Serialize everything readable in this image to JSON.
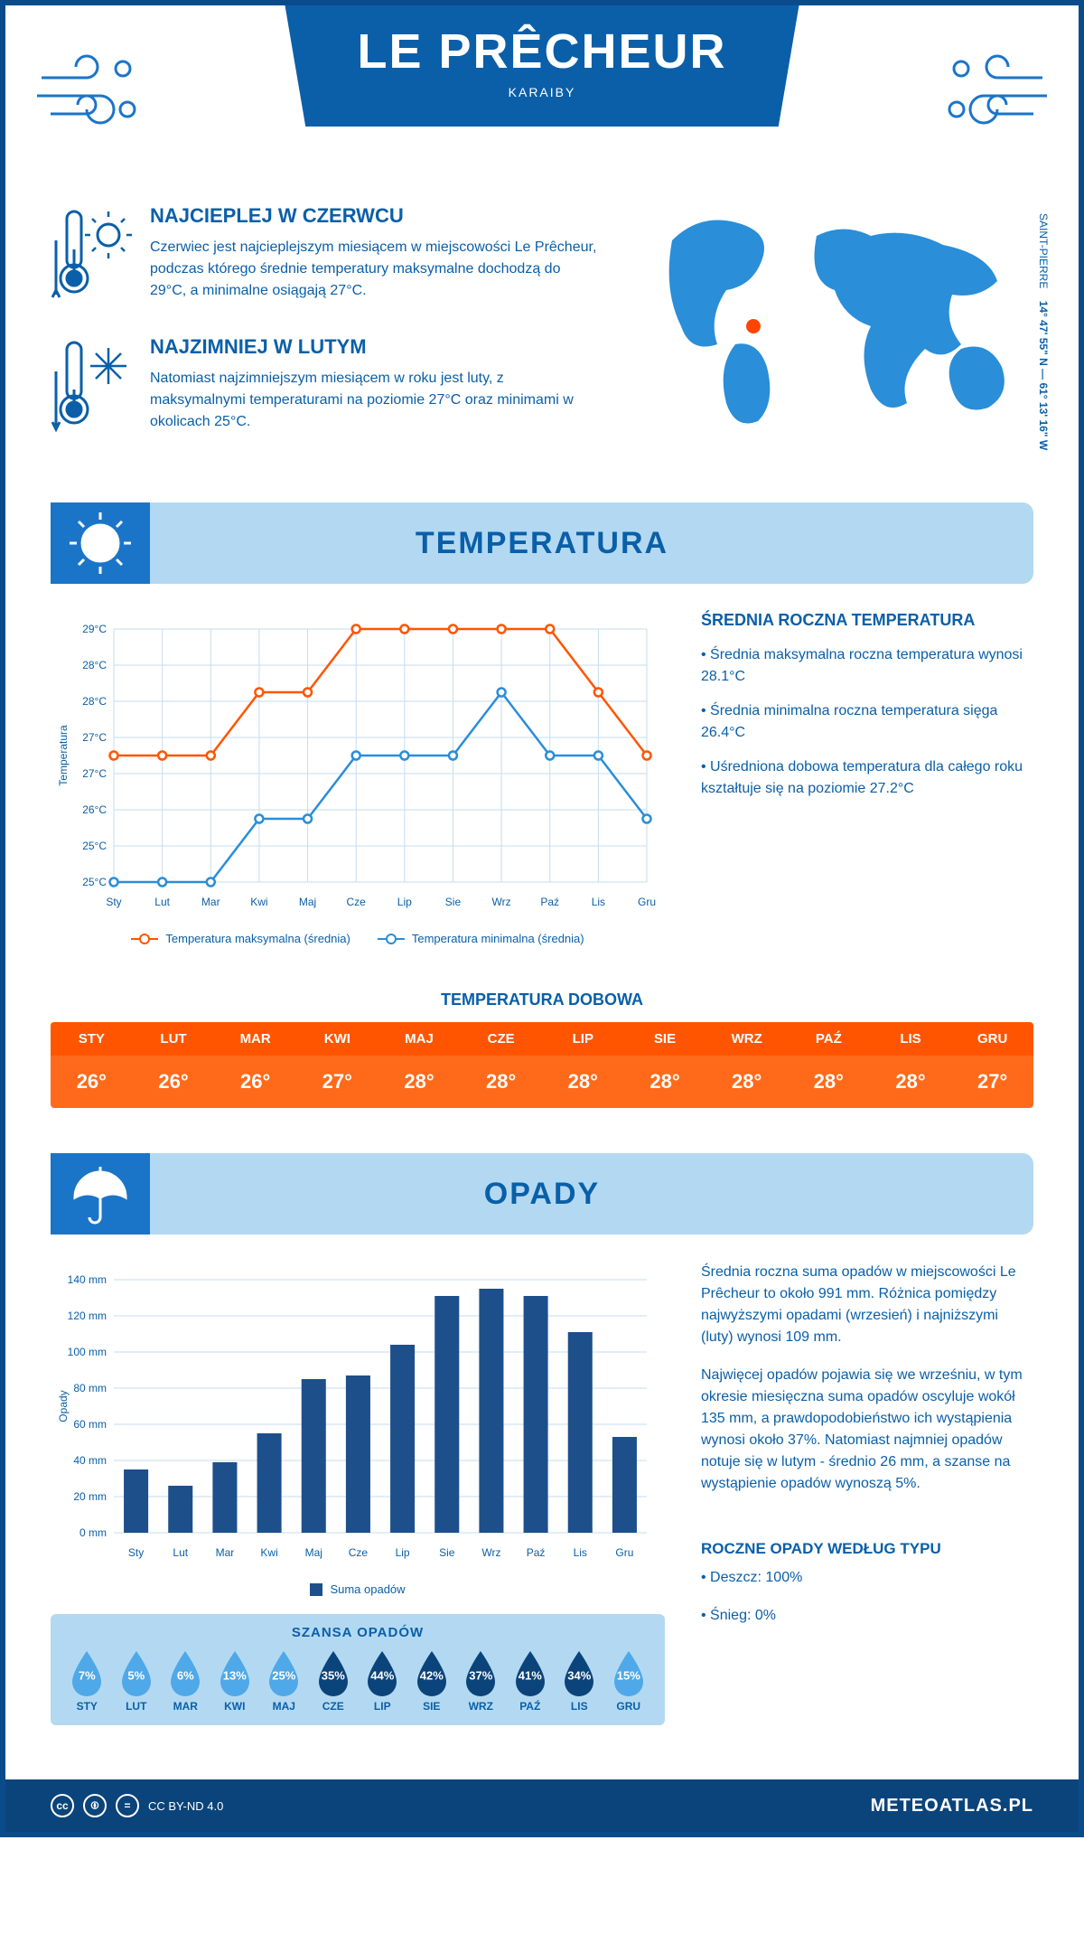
{
  "header": {
    "title": "LE PRÊCHEUR",
    "subtitle": "KARAIBY"
  },
  "coords": {
    "region": "SAINT-PIERRE",
    "lat": "14° 47' 55\" N",
    "lon": "61° 13' 16\" W"
  },
  "intro": {
    "warm": {
      "title": "NAJCIEPLEJ W CZERWCU",
      "text": "Czerwiec jest najcieplejszym miesiącem w miejscowości Le Prêcheur, podczas którego średnie temperatury maksymalne dochodzą do 29°C, a minimalne osiągają 27°C."
    },
    "cold": {
      "title": "NAJZIMNIEJ W LUTYM",
      "text": "Natomiast najzimniejszym miesiącem w roku jest luty, z maksymalnymi temperaturami na poziomie 27°C oraz minimami w okolicach 25°C."
    }
  },
  "sections": {
    "temperature": "TEMPERATURA",
    "precip": "OPADY"
  },
  "temp_chart": {
    "months": [
      "Sty",
      "Lut",
      "Mar",
      "Kwi",
      "Maj",
      "Cze",
      "Lip",
      "Sie",
      "Wrz",
      "Paź",
      "Lis",
      "Gru"
    ],
    "ylabel": "Temperatura",
    "ylim": [
      25,
      29
    ],
    "yticks": [
      "25°C",
      "25°C",
      "26°C",
      "27°C",
      "27°C",
      "28°C",
      "28°C",
      "29°C"
    ],
    "max_series": [
      27,
      27,
      27,
      28,
      28,
      29,
      29,
      29,
      29,
      29,
      28,
      27
    ],
    "min_series": [
      25,
      25,
      25,
      26,
      26,
      27,
      27,
      27,
      28,
      27,
      27,
      26
    ],
    "max_color": "#ff5500",
    "min_color": "#2a8ed8",
    "grid_color": "#c6ddf0",
    "legend_max": "Temperatura maksymalna (średnia)",
    "legend_min": "Temperatura minimalna (średnia)"
  },
  "temp_side": {
    "title": "ŚREDNIA ROCZNA TEMPERATURA",
    "b1": "• Średnia maksymalna roczna temperatura wynosi 28.1°C",
    "b2": "• Średnia minimalna roczna temperatura sięga 26.4°C",
    "b3": "• Uśredniona dobowa temperatura dla całego roku kształtuje się na poziomie 27.2°C"
  },
  "daily": {
    "title": "TEMPERATURA DOBOWA",
    "months": [
      "STY",
      "LUT",
      "MAR",
      "KWI",
      "MAJ",
      "CZE",
      "LIP",
      "SIE",
      "WRZ",
      "PAŹ",
      "LIS",
      "GRU"
    ],
    "values": [
      "26°",
      "26°",
      "26°",
      "27°",
      "28°",
      "28°",
      "28°",
      "28°",
      "28°",
      "28°",
      "28°",
      "27°"
    ],
    "header_bg": "#ff5500",
    "body_bg": "#ff6a1a"
  },
  "precip_chart": {
    "months": [
      "Sty",
      "Lut",
      "Mar",
      "Kwi",
      "Maj",
      "Cze",
      "Lip",
      "Sie",
      "Wrz",
      "Paź",
      "Lis",
      "Gru"
    ],
    "ylabel": "Opady",
    "values": [
      35,
      26,
      39,
      55,
      85,
      87,
      104,
      131,
      135,
      131,
      111,
      53
    ],
    "ylim": [
      0,
      140
    ],
    "ytick_step": 20,
    "bar_color": "#1d4f8b",
    "grid_color": "#c6ddf0",
    "legend": "Suma opadów"
  },
  "precip_side": {
    "p1": "Średnia roczna suma opadów w miejscowości Le Prêcheur to około 991 mm. Różnica pomiędzy najwyższymi opadami (wrzesień) i najniższymi (luty) wynosi 109 mm.",
    "p2": "Najwięcej opadów pojawia się we wrześniu, w tym okresie miesięczna suma opadów oscyluje wokół 135 mm, a prawdopodobieństwo ich wystąpienia wynosi około 37%. Natomiast najmniej opadów notuje się w lutym - średnio 26 mm, a szanse na wystąpienie opadów wynoszą 5%.",
    "type_title": "ROCZNE OPADY WEDŁUG TYPU",
    "rain": "• Deszcz: 100%",
    "snow": "• Śnieg: 0%"
  },
  "chance": {
    "title": "SZANSA OPADÓW",
    "months": [
      "STY",
      "LUT",
      "MAR",
      "KWI",
      "MAJ",
      "CZE",
      "LIP",
      "SIE",
      "WRZ",
      "PAŹ",
      "LIS",
      "GRU"
    ],
    "values": [
      7,
      5,
      6,
      13,
      25,
      35,
      44,
      42,
      37,
      41,
      34,
      15
    ],
    "light_color": "#4fa8e8",
    "dark_color": "#0b447a",
    "threshold": 30
  },
  "footer": {
    "license": "CC BY-ND 4.0",
    "brand": "METEOATLAS.PL"
  }
}
